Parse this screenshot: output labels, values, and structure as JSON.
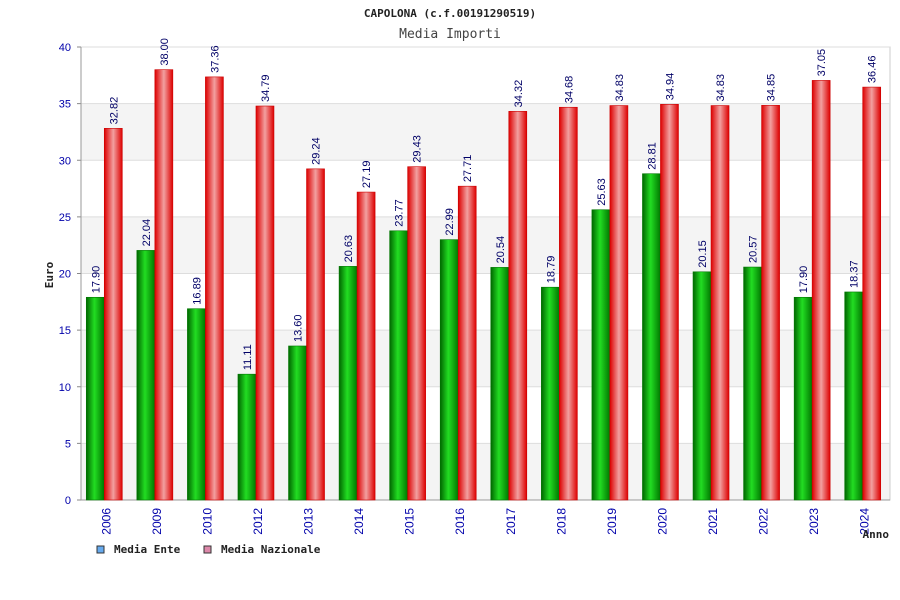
{
  "chart_data": {
    "type": "bar",
    "title": "CAPOLONA (c.f.00191290519)",
    "subtitle": "Media Importi",
    "xlabel": "Anno",
    "ylabel": "Euro",
    "ylim": [
      0,
      40
    ],
    "yticks": [
      0,
      5,
      10,
      15,
      20,
      25,
      30,
      35,
      40
    ],
    "grid": true,
    "categories": [
      "2006",
      "2009",
      "2010",
      "2012",
      "2013",
      "2014",
      "2015",
      "2016",
      "2017",
      "2018",
      "2019",
      "2020",
      "2021",
      "2022",
      "2023",
      "2024"
    ],
    "series": [
      {
        "name": "Media Ente",
        "color": "#00aa00",
        "legend_color": "#66aaee",
        "values": [
          17.9,
          22.04,
          16.89,
          11.11,
          13.6,
          20.63,
          23.77,
          22.99,
          20.54,
          18.79,
          25.63,
          28.81,
          20.15,
          20.57,
          17.9,
          18.37
        ],
        "labels": [
          "17.90",
          "22.04",
          "16.89",
          "11.11",
          "13.60",
          "20.63",
          "23.77",
          "22.99",
          "20.54",
          "18.79",
          "25.63",
          "28.81",
          "20.15",
          "20.57",
          "17.90",
          "18.37"
        ]
      },
      {
        "name": "Media Nazionale",
        "color": "#ee0000",
        "legend_color": "#dd88aa",
        "values": [
          32.82,
          38.0,
          37.36,
          34.79,
          29.24,
          27.19,
          29.43,
          27.71,
          34.32,
          34.68,
          34.83,
          34.94,
          34.83,
          34.85,
          37.05,
          36.46
        ],
        "labels": [
          "32.82",
          "38.00",
          "37.36",
          "34.79",
          "29.24",
          "27.19",
          "29.43",
          "27.71",
          "34.32",
          "34.68",
          "34.83",
          "34.94",
          "34.83",
          "34.85",
          "37.05",
          "36.46"
        ]
      }
    ],
    "legend_position": "bottom-left"
  }
}
